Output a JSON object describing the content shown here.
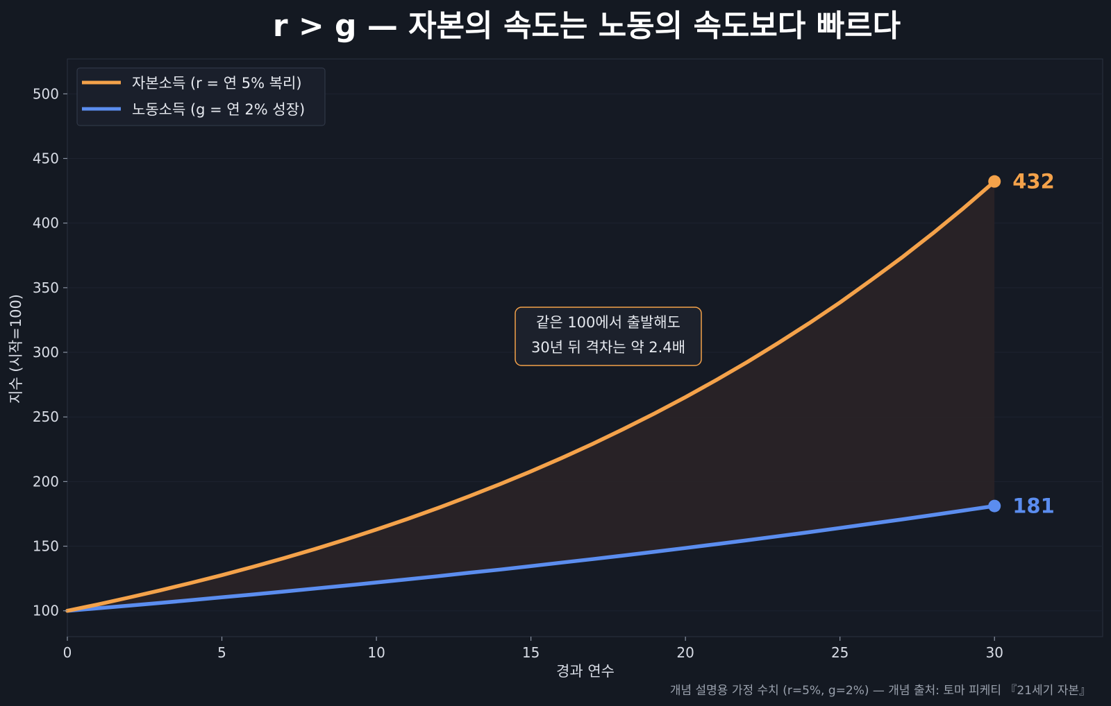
{
  "colors": {
    "background": "#141922",
    "plot_background": "#151a24",
    "capital": "#f4a24a",
    "labor": "#5b8def",
    "fill": "#2a2427",
    "grid": "#1d2330"
  },
  "chart_data": {
    "type": "line",
    "title": "r > g — 자본의 속도는 노동의 속도보다 빠르다",
    "xlabel": "경과 연수",
    "ylabel": "지수 (시작=100)",
    "xlim": [
      0,
      33.5
    ],
    "ylim": [
      80,
      527
    ],
    "x_ticks": [
      0,
      5,
      10,
      15,
      20,
      25,
      30
    ],
    "y_ticks": [
      100,
      150,
      200,
      250,
      300,
      350,
      400,
      450,
      500
    ],
    "grid": true,
    "legend_position": "top-left",
    "x": [
      0,
      1,
      2,
      3,
      4,
      5,
      6,
      7,
      8,
      9,
      10,
      11,
      12,
      13,
      14,
      15,
      16,
      17,
      18,
      19,
      20,
      21,
      22,
      23,
      24,
      25,
      26,
      27,
      28,
      29,
      30
    ],
    "series": [
      {
        "name": "자본소득 (r = 연 5% 복리)",
        "color": "#f4a24a",
        "values": [
          100,
          105,
          110.3,
          115.8,
          121.6,
          127.6,
          134,
          140.7,
          147.7,
          155.1,
          162.9,
          171,
          179.6,
          188.6,
          198,
          207.9,
          218.3,
          229.2,
          240.7,
          252.7,
          265.3,
          278.6,
          292.5,
          307.2,
          322.5,
          338.6,
          355.7,
          373.3,
          392,
          411.6,
          432.2
        ],
        "end_label": "432"
      },
      {
        "name": "노동소득 (g = 연 2% 성장)",
        "color": "#5b8def",
        "values": [
          100,
          102,
          104,
          106.1,
          108.2,
          110.4,
          112.6,
          114.9,
          117.2,
          119.5,
          121.9,
          124.3,
          126.8,
          129.4,
          131.9,
          134.6,
          137.3,
          140,
          142.8,
          145.7,
          148.6,
          151.6,
          154.6,
          157.7,
          160.8,
          164.1,
          167.4,
          170.7,
          174.1,
          177.6,
          181.1
        ],
        "end_label": "181"
      }
    ],
    "annotation": {
      "line1": "같은 100에서 출발해도",
      "line2": "30년 뒤 격차는 약 2.4배"
    },
    "source_note": "개념 설명용 가정 수치 (r=5%, g=2%) — 개념 출처: 토마 피케티 『21세기 자본』"
  }
}
